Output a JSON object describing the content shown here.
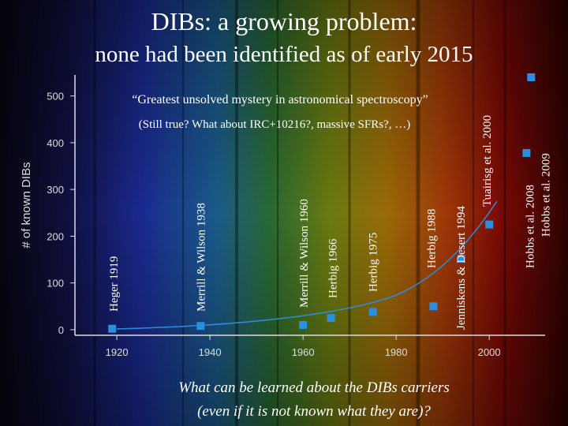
{
  "chart_data": {
    "type": "scatter",
    "title": "DIBs: a growing problem:",
    "subtitle": "none had been identified as of early 2015",
    "quote": "“Greatest unsolved mystery in astronomical spectroscopy”",
    "note": "(Still true? What about IRC+10216?, massive SFRs?, …)",
    "y_label": "# of known DIBs",
    "question": [
      "What can be learned about the DIBs carriers",
      "(even if it is not known what they are)?"
    ],
    "x": [
      1919,
      1938,
      1960,
      1966,
      1975,
      1988,
      1994,
      2000,
      2008,
      2009
    ],
    "values": [
      2,
      8,
      10,
      25,
      38,
      50,
      152,
      225,
      378,
      540
    ],
    "point_labels": [
      "Heger 1919",
      "Merrill & Wilson 1938",
      "Merrill & Wilson 1960",
      "Herbig 1966",
      "Herbig 1975",
      "Herbig 1988",
      "Jenniskens & Desert 1994",
      "Tuairisg et al. 2000",
      "Hobbs et al. 2008",
      "Hobbs et al. 2009"
    ],
    "color": "#2a8fe0",
    "xlim": [
      1911,
      2012
    ],
    "ylim": [
      -12,
      545
    ],
    "xticks": [
      1920,
      1940,
      1960,
      1980,
      2000
    ],
    "yticks": [
      0,
      100,
      200,
      300,
      400,
      500
    ]
  }
}
